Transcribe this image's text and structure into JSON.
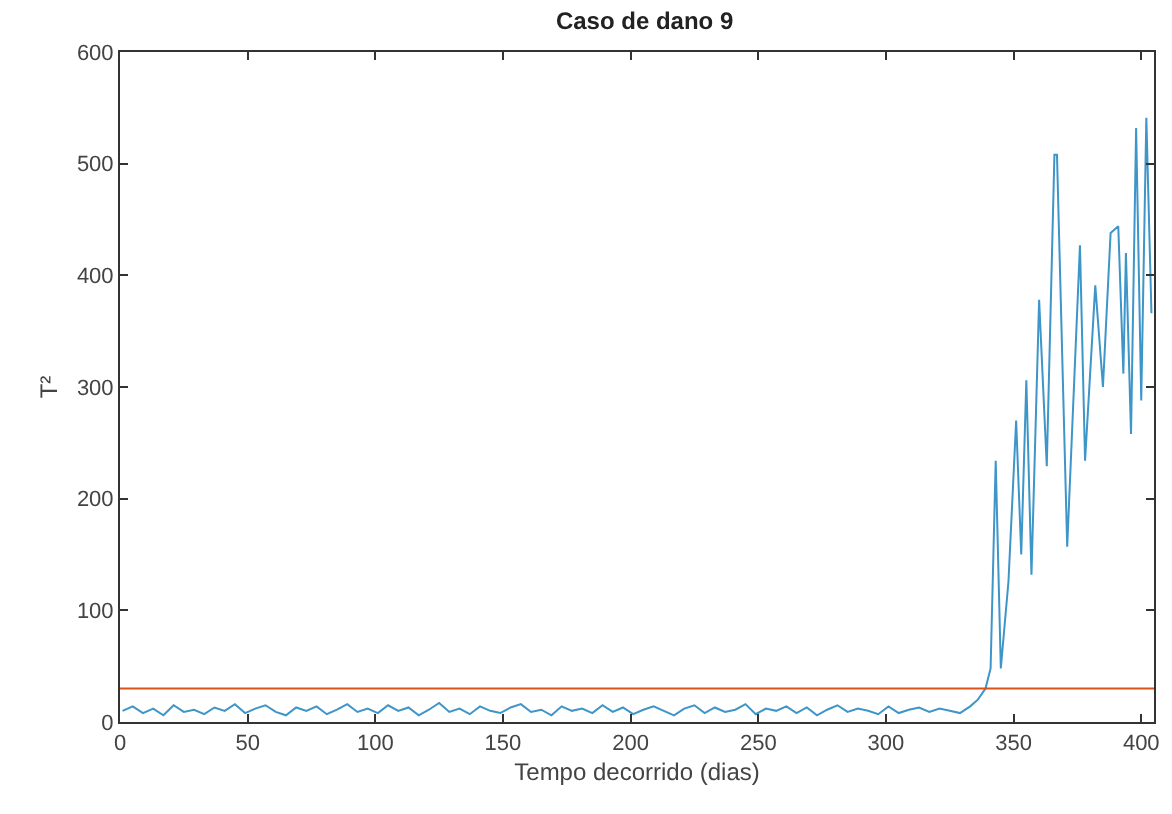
{
  "chart_data": {
    "type": "line",
    "title": "Caso de dano 9",
    "xlabel": "Tempo decorrido (dias)",
    "ylabel": "T²",
    "xlim": [
      0,
      405
    ],
    "xticks": [
      0,
      50,
      100,
      150,
      200,
      250,
      300,
      350,
      400
    ],
    "ylim": [
      0,
      600
    ],
    "yticks": [
      0,
      100,
      200,
      300,
      400,
      500,
      600
    ],
    "grid": false,
    "ref_lines": [
      {
        "axis": "y",
        "value": 30,
        "color": "#d95319"
      }
    ],
    "series": [
      {
        "color": "#3d95c8",
        "x": [
          1,
          5,
          9,
          13,
          17,
          21,
          25,
          29,
          33,
          37,
          41,
          45,
          49,
          53,
          57,
          61,
          65,
          69,
          73,
          77,
          81,
          85,
          89,
          93,
          97,
          101,
          105,
          109,
          113,
          117,
          121,
          125,
          129,
          133,
          137,
          141,
          145,
          149,
          153,
          157,
          161,
          165,
          169,
          173,
          177,
          181,
          185,
          189,
          193,
          197,
          201,
          205,
          209,
          213,
          217,
          221,
          225,
          229,
          233,
          237,
          241,
          245,
          249,
          253,
          257,
          261,
          265,
          269,
          273,
          277,
          281,
          285,
          289,
          293,
          297,
          301,
          305,
          309,
          313,
          317,
          321,
          325,
          329,
          333,
          336,
          339,
          341,
          343,
          345,
          348,
          351,
          353,
          355,
          357,
          360,
          363,
          366,
          367,
          371,
          376,
          378,
          382,
          385,
          388,
          391,
          393,
          394,
          396,
          398,
          400,
          402,
          404
        ],
        "values": [
          10,
          14,
          8,
          12,
          6,
          15,
          9,
          11,
          7,
          13,
          10,
          16,
          8,
          12,
          15,
          9,
          6,
          13,
          10,
          14,
          7,
          11,
          16,
          9,
          12,
          8,
          15,
          10,
          13,
          6,
          11,
          17,
          9,
          12,
          7,
          14,
          10,
          8,
          13,
          16,
          9,
          11,
          6,
          14,
          10,
          12,
          8,
          15,
          9,
          13,
          7,
          11,
          14,
          10,
          6,
          12,
          15,
          8,
          13,
          9,
          11,
          16,
          7,
          12,
          10,
          14,
          8,
          13,
          6,
          11,
          15,
          9,
          12,
          10,
          7,
          14,
          8,
          11,
          13,
          9,
          12,
          10,
          8,
          14,
          20,
          30,
          48,
          234,
          48,
          126,
          270,
          150,
          306,
          132,
          378,
          229,
          508,
          508,
          157,
          427,
          234,
          391,
          300,
          438,
          444,
          312,
          420,
          258,
          532,
          288,
          541,
          366
        ]
      }
    ]
  }
}
